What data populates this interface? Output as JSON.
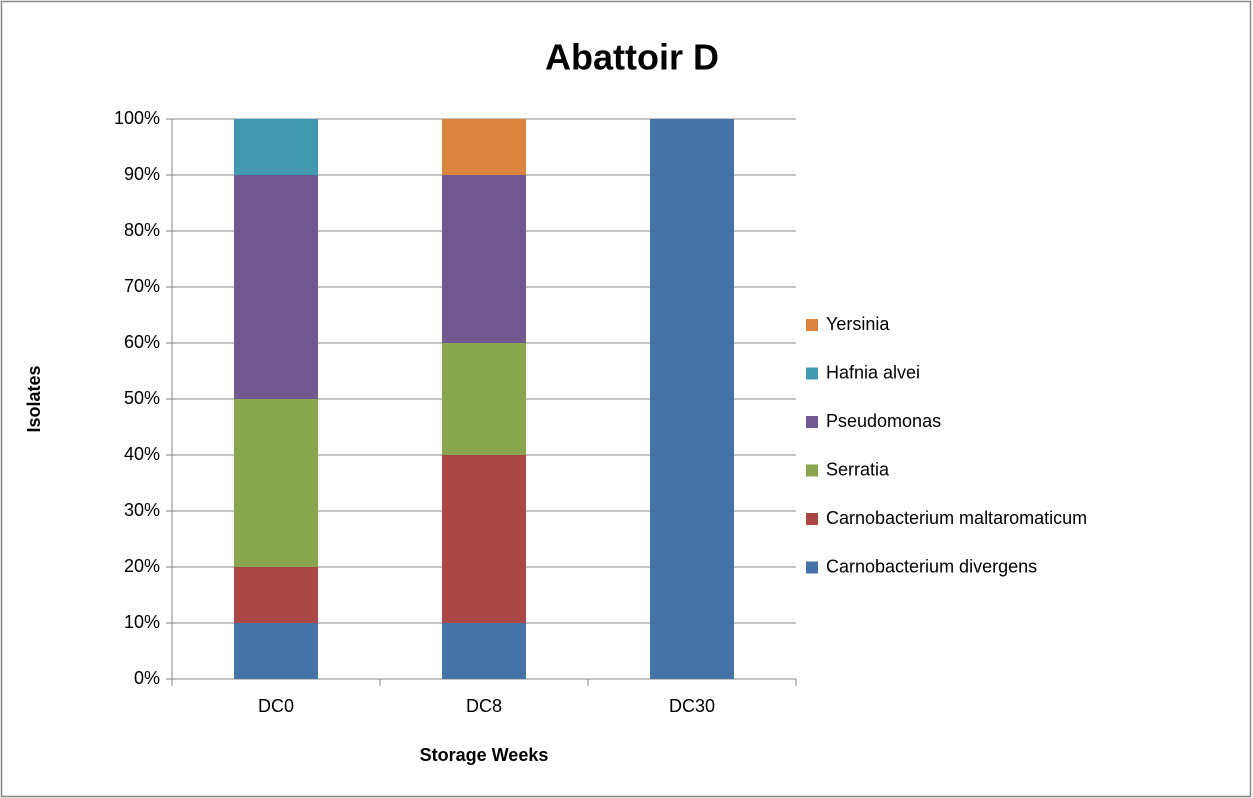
{
  "chart_data": {
    "type": "stacked_bar",
    "title": "Abattoir D",
    "x_label": "Storage Weeks",
    "y_label": "Isolates",
    "categories": [
      "DC0",
      "DC8",
      "DC30"
    ],
    "series": [
      {
        "name": "Carnobacterium divergens",
        "color": "#4572a7",
        "values": [
          10,
          10,
          100
        ]
      },
      {
        "name": "Carnobacterium maltaromaticum",
        "color": "#aa4643",
        "values": [
          10,
          30,
          0
        ]
      },
      {
        "name": "Serratia",
        "color": "#89a54e",
        "values": [
          30,
          20,
          0
        ]
      },
      {
        "name": "Pseudomonas",
        "color": "#71588f",
        "values": [
          40,
          30,
          0
        ]
      },
      {
        "name": "Hafnia alvei",
        "color": "#4198af",
        "values": [
          10,
          0,
          0
        ]
      },
      {
        "name": "Yersinia",
        "color": "#db843d",
        "values": [
          0,
          10,
          0
        ]
      }
    ],
    "ylim": [
      0,
      100
    ],
    "yticks": [
      {
        "value": 0,
        "label": "0%"
      },
      {
        "value": 10,
        "label": "10%"
      },
      {
        "value": 20,
        "label": "20%"
      },
      {
        "value": 30,
        "label": "30%"
      },
      {
        "value": 40,
        "label": "40%"
      },
      {
        "value": 50,
        "label": "50%"
      },
      {
        "value": 60,
        "label": "60%"
      },
      {
        "value": 70,
        "label": "70%"
      },
      {
        "value": 80,
        "label": "80%"
      },
      {
        "value": 90,
        "label": "90%"
      },
      {
        "value": 100,
        "label": "100%"
      }
    ],
    "grid": true,
    "legend": "right"
  }
}
